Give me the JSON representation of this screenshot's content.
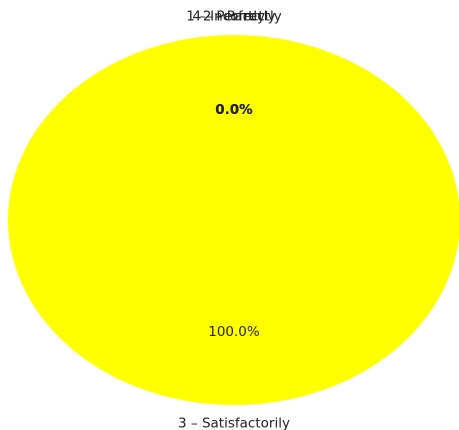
{
  "chart_data": {
    "type": "pie",
    "categories": [
      "1 – Incorrectly",
      "4 – Perfectly",
      "2 – Partly",
      "3 – Satisfactorily"
    ],
    "values": [
      0.0,
      0.0,
      0.0,
      100.0
    ],
    "percent_labels": [
      "0.0%",
      "0.0%",
      "0.0%",
      "100.0%"
    ],
    "colors": [
      "#ff0000",
      "#008000",
      "#0000ff",
      "#ffff00"
    ],
    "title": "",
    "legend": "none"
  }
}
